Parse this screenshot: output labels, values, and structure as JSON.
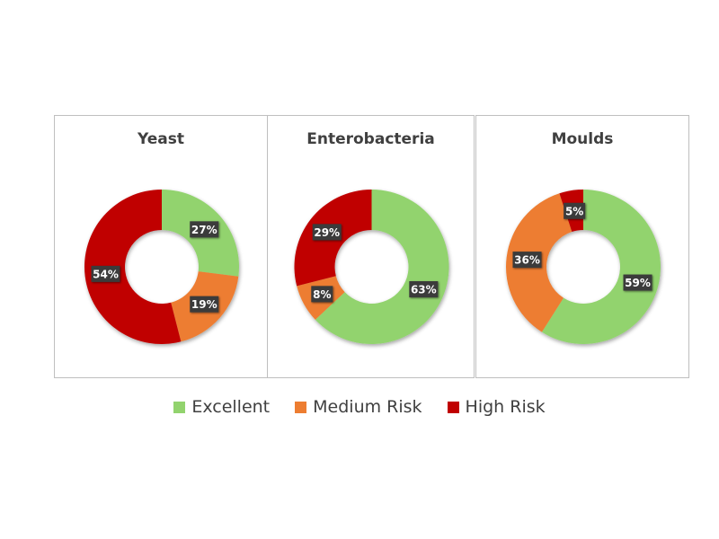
{
  "chart_data": [
    {
      "type": "pie",
      "title": "Yeast",
      "categories": [
        "Excellent",
        "Medium Risk",
        "High Risk"
      ],
      "values": [
        27,
        19,
        54
      ],
      "labels": [
        "27%",
        "19%",
        "54%"
      ],
      "colors": [
        "#92d36e",
        "#ed7d31",
        "#c00000"
      ]
    },
    {
      "type": "pie",
      "title": "Enterobacteria",
      "categories": [
        "Excellent",
        "Medium Risk",
        "High Risk"
      ],
      "values": [
        63,
        8,
        29
      ],
      "labels": [
        "63%",
        "8%",
        "29%"
      ],
      "colors": [
        "#92d36e",
        "#ed7d31",
        "#c00000"
      ]
    },
    {
      "type": "pie",
      "title": "Moulds",
      "categories": [
        "Excellent",
        "Medium Risk",
        "High Risk"
      ],
      "values": [
        59,
        36,
        5
      ],
      "labels": [
        "59%",
        "36%",
        "5%"
      ],
      "colors": [
        "#92d36e",
        "#ed7d31",
        "#c00000"
      ]
    }
  ],
  "legend": {
    "placement": "bottom",
    "items": [
      {
        "label": "Excellent",
        "color": "#92d36e"
      },
      {
        "label": "Medium Risk",
        "color": "#ed7d31"
      },
      {
        "label": "High Risk",
        "color": "#c00000"
      }
    ]
  }
}
